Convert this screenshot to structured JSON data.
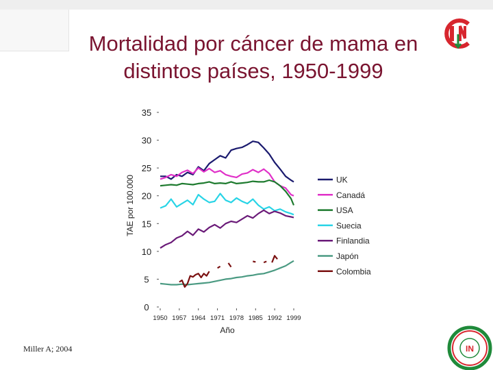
{
  "title_lines": [
    "Mortalidad por cáncer de mama en",
    "distintos países, 1950-1999"
  ],
  "citation": "Miller A; 2004",
  "logo_text": "IN",
  "colors": {
    "title": "#7a1430",
    "logo_red": "#d7262e",
    "logo_green": "#1f8a3a"
  },
  "chart_data": {
    "type": "line",
    "title": "",
    "xlabel": "Año",
    "ylabel": "TAE por 100.000",
    "xlim": [
      1950,
      1999
    ],
    "ylim": [
      0,
      35
    ],
    "yticks": [
      0,
      5,
      10,
      15,
      20,
      25,
      30,
      35
    ],
    "xticks": [
      1950,
      1957,
      1964,
      1971,
      1978,
      1985,
      1992,
      1999
    ],
    "xtick_labels": [
      "1950",
      "1957",
      "1964",
      "1971",
      "1978",
      "1985",
      "1992",
      "1999"
    ],
    "legend_position": "right",
    "series": [
      {
        "name": "UK",
        "color": "#1a1a6e",
        "x": [
          1950,
          1952,
          1954,
          1956,
          1958,
          1960,
          1962,
          1964,
          1966,
          1968,
          1970,
          1972,
          1974,
          1976,
          1978,
          1980,
          1982,
          1984,
          1986,
          1988,
          1990,
          1992,
          1994,
          1996,
          1998,
          1999
        ],
        "y": [
          23.5,
          23.5,
          23.0,
          23.8,
          23.5,
          24.2,
          23.8,
          25.2,
          24.5,
          25.8,
          26.5,
          27.2,
          26.8,
          28.2,
          28.5,
          28.7,
          29.2,
          29.8,
          29.6,
          28.6,
          27.5,
          26.0,
          24.8,
          23.5,
          22.8,
          22.5
        ]
      },
      {
        "name": "Canadá",
        "color": "#e030c8",
        "x": [
          1950,
          1952,
          1954,
          1956,
          1958,
          1960,
          1962,
          1964,
          1966,
          1968,
          1970,
          1972,
          1974,
          1976,
          1978,
          1980,
          1982,
          1984,
          1986,
          1988,
          1990,
          1992,
          1994,
          1996,
          1998,
          1999
        ],
        "y": [
          23.0,
          23.3,
          23.8,
          23.5,
          24.2,
          24.6,
          24.0,
          25.0,
          24.3,
          24.9,
          24.2,
          24.5,
          23.8,
          23.5,
          23.3,
          23.9,
          24.1,
          24.7,
          24.2,
          24.8,
          24.0,
          22.5,
          21.8,
          21.4,
          20.2,
          20.0
        ]
      },
      {
        "name": "USA",
        "color": "#1d7a2e",
        "x": [
          1950,
          1952,
          1954,
          1956,
          1958,
          1960,
          1962,
          1964,
          1966,
          1968,
          1970,
          1972,
          1974,
          1976,
          1978,
          1980,
          1982,
          1984,
          1986,
          1988,
          1990,
          1992,
          1994,
          1996,
          1998,
          1999
        ],
        "y": [
          21.8,
          21.9,
          22.0,
          21.9,
          22.2,
          22.1,
          22.0,
          22.2,
          22.3,
          22.5,
          22.2,
          22.3,
          22.2,
          22.5,
          22.2,
          22.3,
          22.4,
          22.6,
          22.5,
          22.5,
          22.8,
          22.5,
          21.8,
          20.8,
          19.5,
          18.3
        ]
      },
      {
        "name": "Suecia",
        "color": "#28d4e6",
        "x": [
          1950,
          1952,
          1954,
          1956,
          1958,
          1960,
          1962,
          1964,
          1966,
          1968,
          1970,
          1972,
          1974,
          1976,
          1978,
          1980,
          1982,
          1984,
          1986,
          1988,
          1990,
          1992,
          1994,
          1996,
          1998,
          1999
        ],
        "y": [
          17.8,
          18.2,
          19.4,
          18.0,
          18.6,
          19.2,
          18.4,
          20.2,
          19.4,
          18.8,
          19.0,
          20.4,
          19.2,
          18.8,
          19.6,
          19.0,
          18.6,
          19.4,
          18.3,
          17.6,
          18.0,
          17.3,
          17.6,
          17.1,
          16.8,
          16.6
        ]
      },
      {
        "name": "Finlandia",
        "color": "#6a1a78",
        "x": [
          1950,
          1952,
          1954,
          1956,
          1958,
          1960,
          1962,
          1964,
          1966,
          1968,
          1970,
          1972,
          1974,
          1976,
          1978,
          1980,
          1982,
          1984,
          1986,
          1988,
          1990,
          1992,
          1994,
          1996,
          1998,
          1999
        ],
        "y": [
          10.6,
          11.2,
          11.6,
          12.4,
          12.8,
          13.6,
          12.9,
          14.0,
          13.5,
          14.3,
          14.8,
          14.2,
          15.0,
          15.4,
          15.2,
          15.8,
          16.4,
          16.0,
          16.8,
          17.4,
          16.8,
          17.2,
          16.9,
          16.4,
          16.2,
          16.1
        ]
      },
      {
        "name": "Japón",
        "color": "#4a9a82",
        "x": [
          1950,
          1952,
          1954,
          1956,
          1958,
          1960,
          1962,
          1964,
          1966,
          1968,
          1970,
          1972,
          1974,
          1976,
          1978,
          1980,
          1982,
          1984,
          1986,
          1988,
          1990,
          1992,
          1994,
          1996,
          1998,
          1999
        ],
        "y": [
          4.2,
          4.1,
          4.0,
          4.0,
          4.1,
          4.0,
          4.1,
          4.2,
          4.3,
          4.4,
          4.6,
          4.8,
          5.0,
          5.1,
          5.3,
          5.4,
          5.6,
          5.7,
          5.9,
          6.0,
          6.3,
          6.6,
          7.0,
          7.4,
          8.0,
          8.3
        ]
      },
      {
        "name": "Colombia",
        "color": "#7a1010",
        "segments": [
          {
            "x": [
              1957,
              1958,
              1959,
              1960,
              1961,
              1962,
              1963,
              1964,
              1965,
              1966,
              1967,
              1968
            ],
            "y": [
              4.5,
              4.8,
              3.6,
              4.2,
              5.6,
              5.4,
              5.8,
              6.0,
              5.3,
              6.0,
              5.6,
              6.4
            ]
          },
          {
            "x": [
              1971,
              1972
            ],
            "y": [
              7.0,
              7.3
            ]
          },
          {
            "x": [
              1975,
              1976
            ],
            "y": [
              7.9,
              7.2
            ]
          },
          {
            "x": [
              1984,
              1985
            ],
            "y": [
              8.2,
              8.1
            ]
          },
          {
            "x": [
              1988,
              1989
            ],
            "y": [
              8.0,
              8.2
            ]
          },
          {
            "x": [
              1991,
              1992,
              1993
            ],
            "y": [
              8.0,
              9.2,
              8.6
            ]
          }
        ]
      }
    ]
  }
}
